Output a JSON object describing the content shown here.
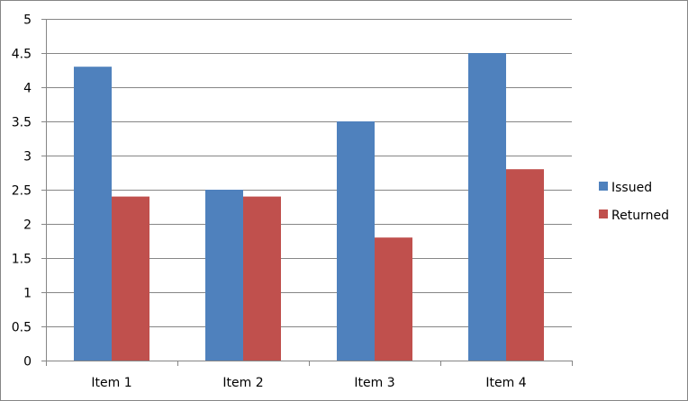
{
  "chart_data": {
    "type": "bar",
    "title": "",
    "xlabel": "",
    "ylabel": "",
    "categories": [
      "Item 1",
      "Item 2",
      "Item 3",
      "Item 4"
    ],
    "series": [
      {
        "name": "Issued",
        "values": [
          4.3,
          2.5,
          3.5,
          4.5
        ],
        "color": "#4F81BD"
      },
      {
        "name": "Returned",
        "values": [
          2.4,
          2.4,
          1.8,
          2.8
        ],
        "color": "#C0504D"
      }
    ],
    "ylim": [
      0,
      5
    ],
    "yticks": [
      "0",
      "0.5",
      "1",
      "1.5",
      "2",
      "2.5",
      "3",
      "3.5",
      "4",
      "4.5",
      "5"
    ],
    "grid": true,
    "legend_position": "right"
  }
}
